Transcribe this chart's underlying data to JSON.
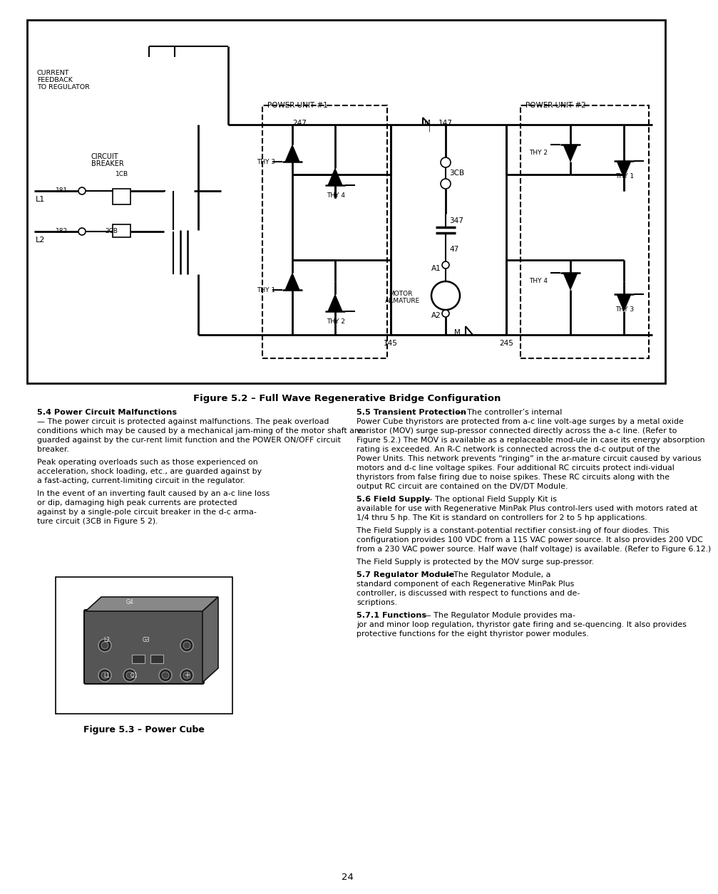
{
  "page_bg": "#ffffff",
  "page_number": "24",
  "fig52_caption": "Figure 5.2 – Full Wave Regenerative Bridge Configuration",
  "fig53_caption": "Figure 5.3 – Power Cube",
  "s54_bold": "5.4 Power Circuit Malfunctions",
  "s54_p1": "— The power circuit is protected against malfunctions. The peak overload conditions which may be caused by a mechanical jam-ming of the motor shaft are guarded against by the cur-rent limit function and the POWER ON/OFF circuit breaker.",
  "s54_p2": "Peak operating overloads such as those experienced on acceleration, shock loading, etc., are guarded against by a fast-acting, current-limiting circuit in the regulator.",
  "s54_p3": "In the event of an inverting fault caused by an a-c line loss or dip, damaging high peak currents are protected against by a single-pole circuit breaker in the d-c arma-ture circuit (3CB in Figure 5 2).",
  "s55_bold": "5.5 Transient Protection",
  "s55_p1": "— The controller’s internal Power Cube thyristors are protected from a-c line volt-age surges by a metal oxide varistor (MOV) surge sup-pressor connected directly across the a-c line. (Refer to Figure 5.2.) The MOV is available as a replaceable mod-ule in case its energy absorption rating is exceeded. An R-C network is connected across the d-c output of the Power Units. This network prevents “ringing” in the ar-mature circuit caused by various motors and d-c line voltage spikes. Four additional RC circuits protect indi-vidual thyristors from false firing due to noise spikes. These RC circuits along with the output RC circuit are contained on the DV/DT Module.",
  "s56_bold": "5.6 Field Supply",
  "s56_p1": "— The optional Field Supply Kit is available for use with Regenerative MinPak Plus control-lers used with motors rated at 1/4 thru 5 hp. The Kit is standard on controllers for 2 to 5 hp applications.",
  "s56_p2": "The Field Supply is a constant-potential rectifier consist-ing of four diodes. This configuration provides 100 VDC from a 115 VAC power source. It also provides 200 VDC from a 230 VAC power source. Half wave (half voltage) is available. (Refer to Figure 6.12.)",
  "s56_p3": "The Field Supply is protected by the MOV surge sup-pressor.",
  "s57_bold": "5.7 Regulator Module",
  "s57_p1": "— The Regulator Module, a standard component of each Regenerative MinPak Plus controller, is discussed with respect to functions and de-scriptions.",
  "s571_bold": "5.7.1 Functions",
  "s571_p1": "— The Regulator Module provides ma-jor and minor loop regulation, thyristor gate firing and se-quencing. It also provides protective functions for the eight thyristor power modules."
}
